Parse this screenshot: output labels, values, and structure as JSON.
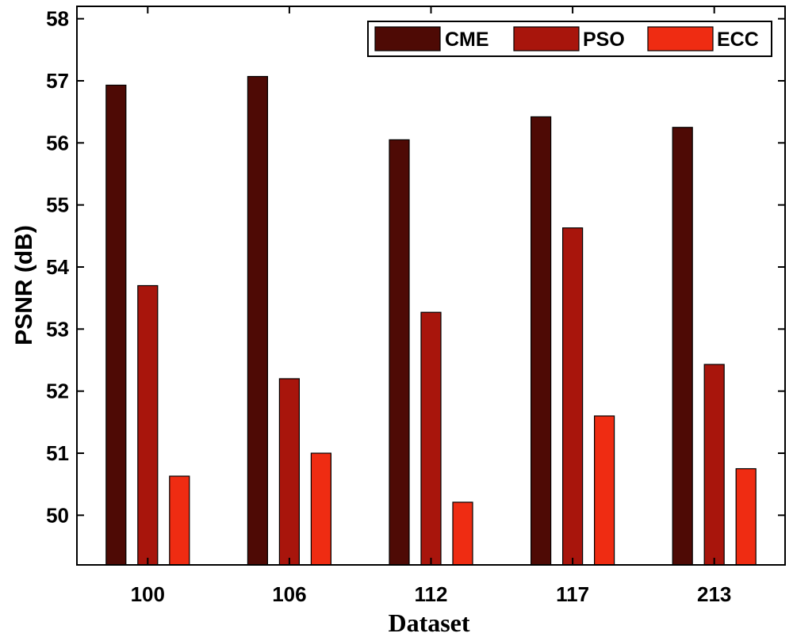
{
  "chart_data": {
    "type": "bar",
    "title": "",
    "xlabel": "Dataset",
    "ylabel": "PSNR (dB)",
    "categories": [
      "100",
      "106",
      "112",
      "117",
      "213"
    ],
    "ylim": [
      49.2,
      58.2
    ],
    "yticks": [
      50,
      51,
      52,
      53,
      54,
      55,
      56,
      57,
      58
    ],
    "grid": false,
    "legend_position": "top-right",
    "series": [
      {
        "name": "CME",
        "color": "#4e0a05",
        "values": [
          56.93,
          57.07,
          56.05,
          56.42,
          56.25
        ]
      },
      {
        "name": "PSO",
        "color": "#a8150c",
        "values": [
          53.7,
          52.2,
          53.27,
          54.63,
          52.43
        ]
      },
      {
        "name": "ECC",
        "color": "#ef2c12",
        "values": [
          50.63,
          51.0,
          50.21,
          51.6,
          50.75
        ]
      }
    ]
  }
}
